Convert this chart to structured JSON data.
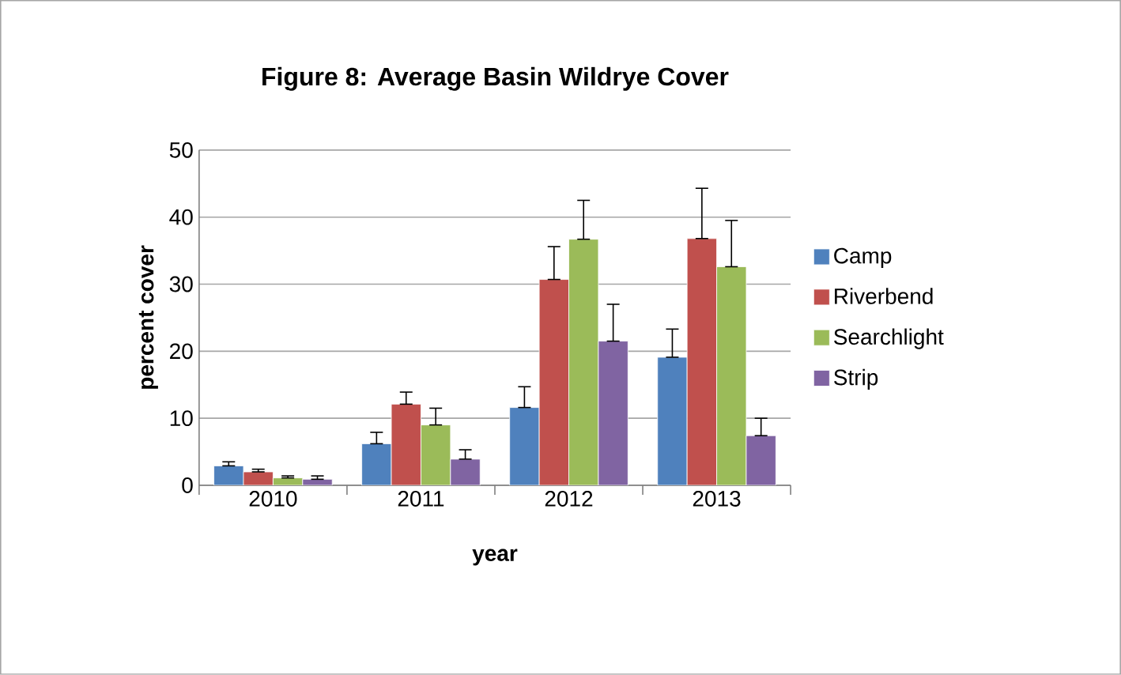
{
  "chart_data": {
    "type": "bar",
    "title": "Figure 8: Average Basin Wildrye Cover",
    "xlabel": "year",
    "ylabel": "percent cover",
    "categories": [
      "2010",
      "2011",
      "2012",
      "2013"
    ],
    "series": [
      {
        "name": "Camp",
        "color": "#4f81bd",
        "values": [
          2.9,
          6.2,
          11.6,
          19.1
        ],
        "errors": [
          [
            2.9,
            3.5
          ],
          [
            6.2,
            7.9
          ],
          [
            11.6,
            14.7
          ],
          [
            19.1,
            23.3
          ]
        ]
      },
      {
        "name": "Riverbend",
        "color": "#c0504d",
        "values": [
          2.0,
          12.1,
          30.7,
          36.8
        ],
        "errors": [
          [
            2.0,
            2.4
          ],
          [
            12.1,
            13.9
          ],
          [
            30.7,
            35.6
          ],
          [
            36.8,
            44.3
          ]
        ]
      },
      {
        "name": "Searchlight",
        "color": "#9bbb59",
        "values": [
          1.1,
          9.0,
          36.7,
          32.6
        ],
        "errors": [
          [
            1.1,
            1.4
          ],
          [
            9.0,
            11.5
          ],
          [
            36.7,
            42.5
          ],
          [
            32.6,
            39.5
          ]
        ]
      },
      {
        "name": "Strip",
        "color": "#8064a2",
        "values": [
          0.9,
          3.9,
          21.5,
          7.4
        ],
        "errors": [
          [
            0.9,
            1.4
          ],
          [
            3.9,
            5.3
          ],
          [
            21.5,
            27.0
          ],
          [
            7.4,
            10.0
          ]
        ]
      }
    ],
    "ylim": [
      0,
      50
    ],
    "yticks": [
      0,
      10,
      20,
      30,
      40,
      50
    ],
    "grid": "y",
    "legend": "right"
  }
}
